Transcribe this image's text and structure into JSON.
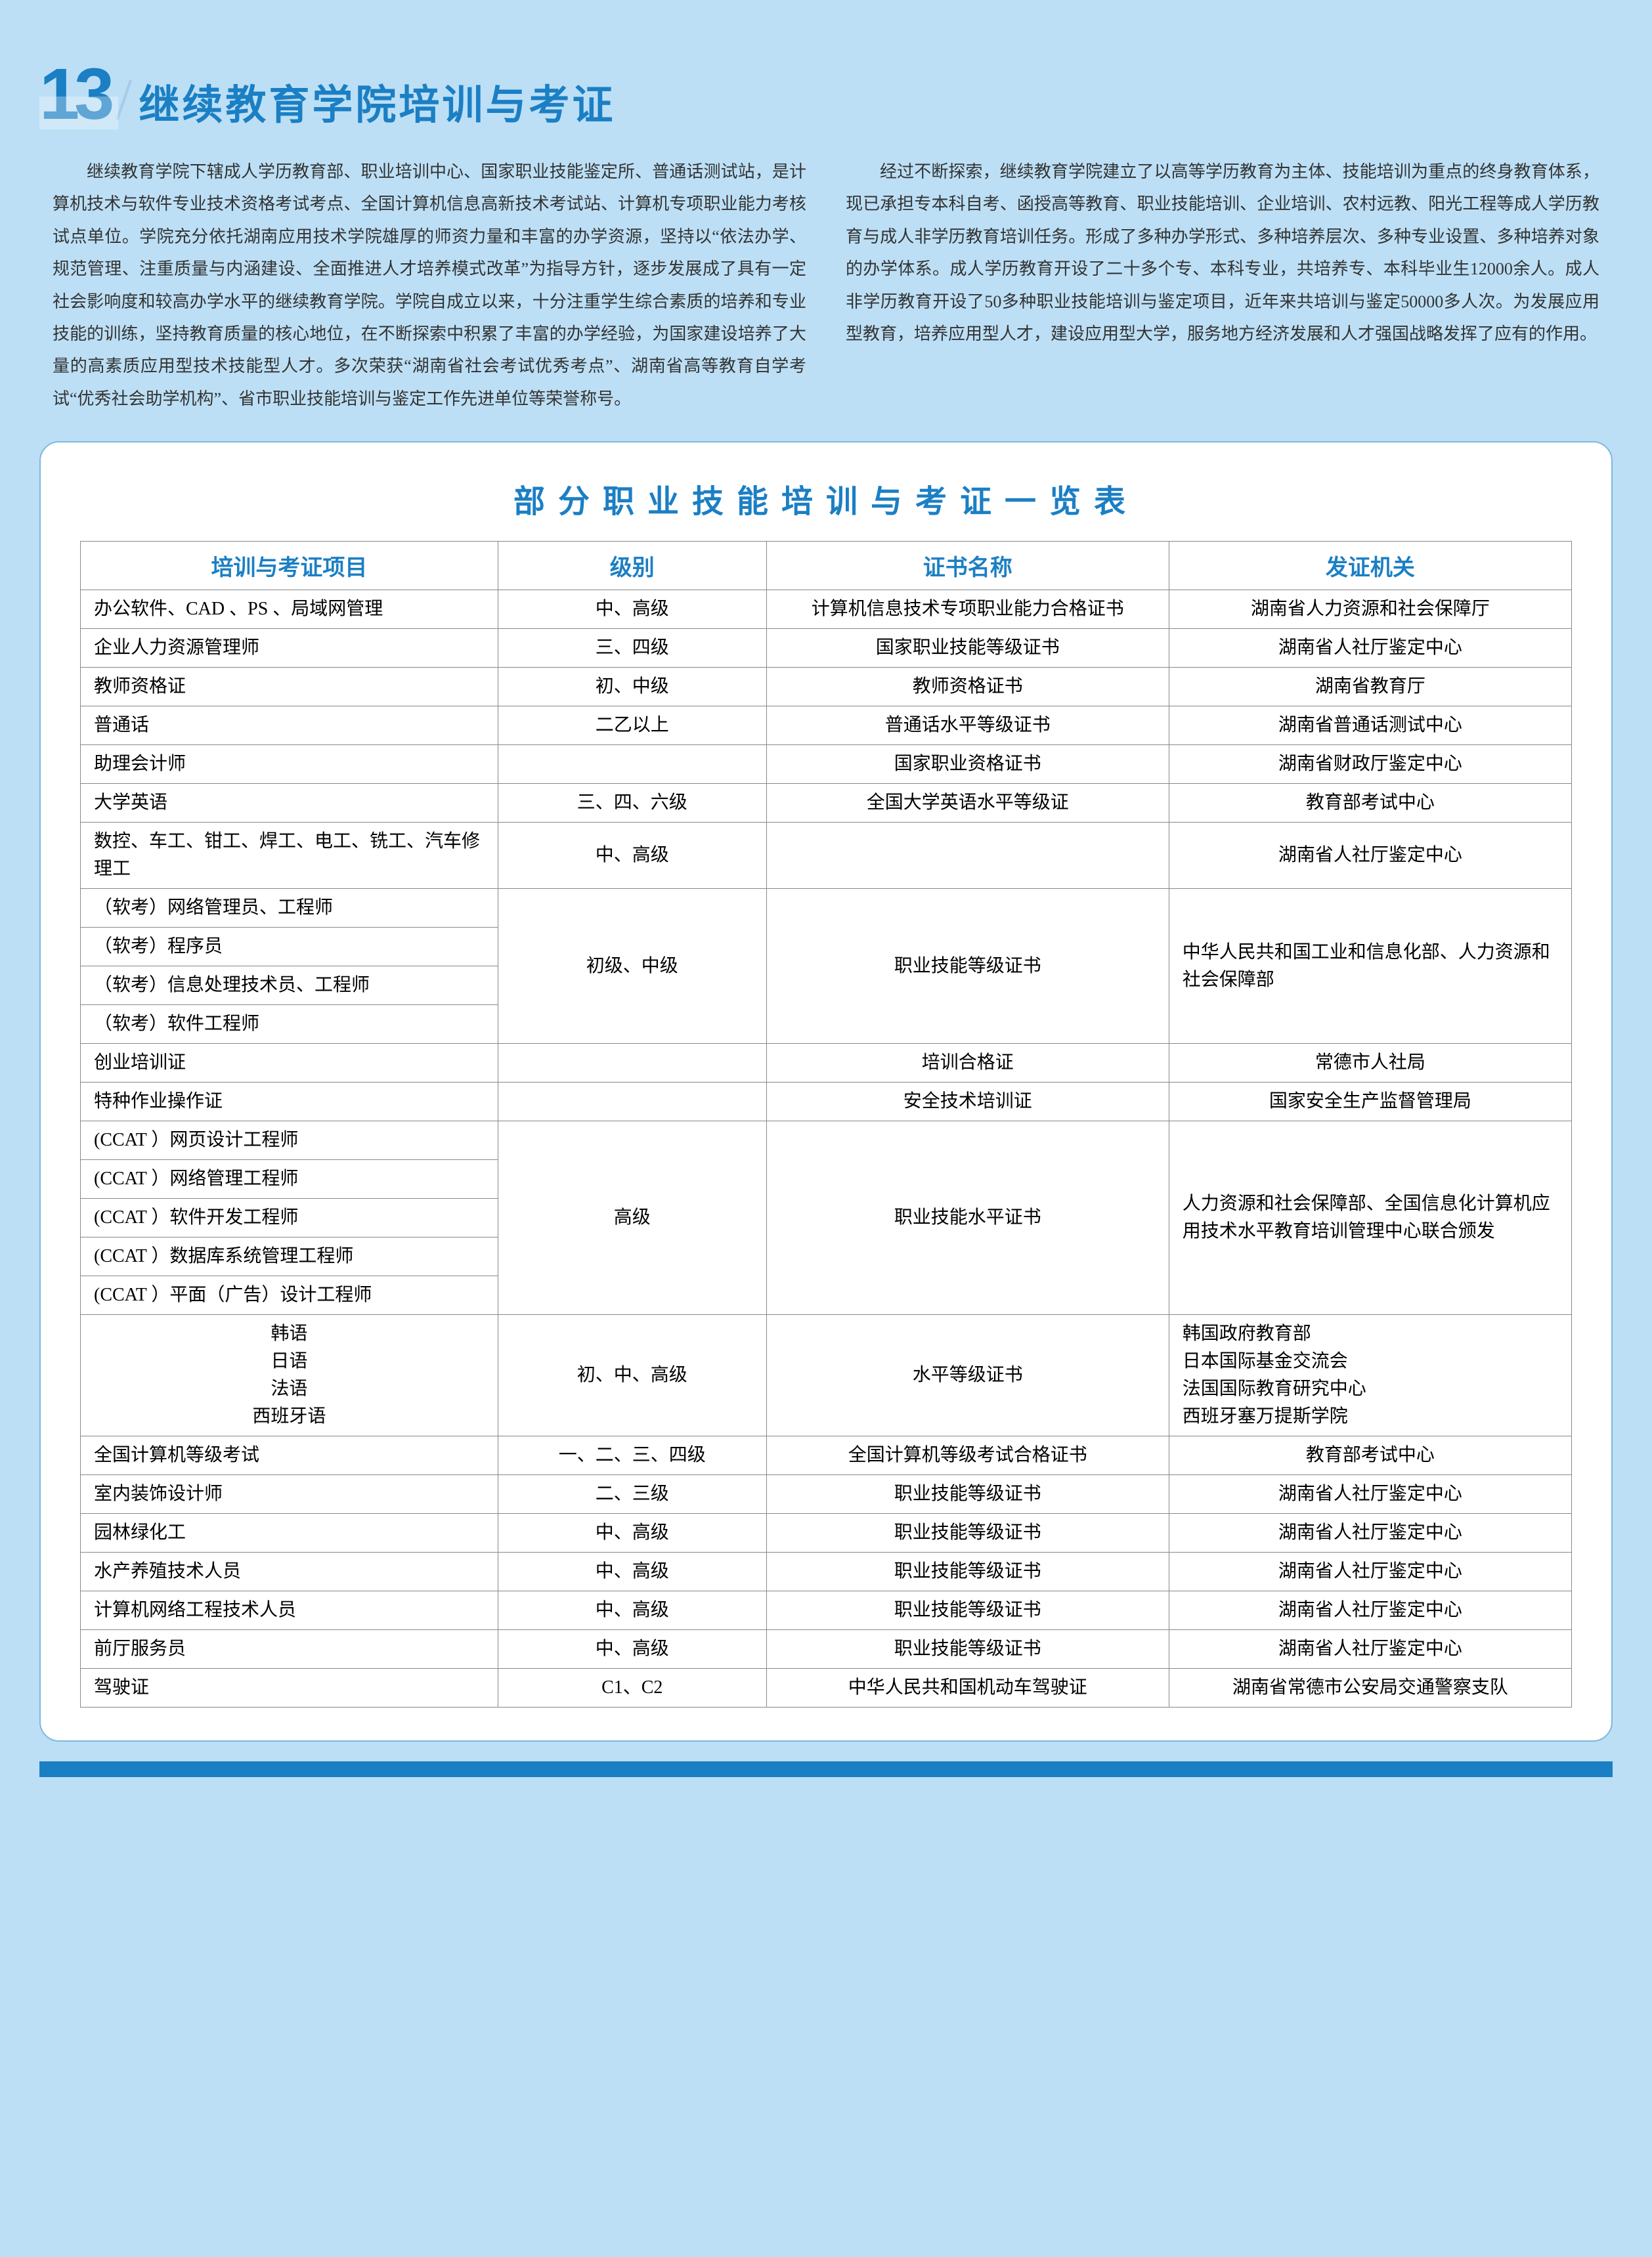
{
  "chapter_number": "13",
  "page_title": "继续教育学院培训与考证",
  "intro_left": "继续教育学院下辖成人学历教育部、职业培训中心、国家职业技能鉴定所、普通话测试站，是计算机技术与软件专业技术资格考试考点、全国计算机信息高新技术考试站、计算机专项职业能力考核试点单位。学院充分依托湖南应用技术学院雄厚的师资力量和丰富的办学资源，坚持以“依法办学、规范管理、注重质量与内涵建设、全面推进人才培养模式改革”为指导方针，逐步发展成了具有一定社会影响度和较高办学水平的继续教育学院。学院自成立以来，十分注重学生综合素质的培养和专业技能的训练，坚持教育质量的核心地位，在不断探索中积累了丰富的办学经验，为国家建设培养了大量的高素质应用型技术技能型人才。多次荣获“湖南省社会考试优秀考点”、湖南省高等教育自学考试“优秀社会助学机构”、省市职业技能培训与鉴定工作先进单位等荣誉称号。",
  "intro_right": "经过不断探索，继续教育学院建立了以高等学历教育为主体、技能培训为重点的终身教育体系，现已承担专本科自考、函授高等教育、职业技能培训、企业培训、农村远教、阳光工程等成人学历教育与成人非学历教育培训任务。形成了多种办学形式、多种培养层次、多种专业设置、多种培养对象的办学体系。成人学历教育开设了二十多个专、本科专业，共培养专、本科毕业生12000余人。成人非学历教育开设了50多种职业技能培训与鉴定项目，近年来共培训与鉴定50000多人次。为发展应用型教育，培养应用型人才，建设应用型大学，服务地方经济发展和人才强国战略发挥了应有的作用。",
  "table_title": "部分职业技能培训与考证一览表",
  "headers": [
    "培训与考证项目",
    "级别",
    "证书名称",
    "发证机关"
  ],
  "rows": [
    {
      "project": "办公软件、CAD 、PS 、局域网管理",
      "level": "中、高级",
      "cert": "计算机信息技术专项职业能力合格证书",
      "issuer": "湖南省人力资源和社会保障厅"
    },
    {
      "project": "企业人力资源管理师",
      "level": "三、四级",
      "cert": "国家职业技能等级证书",
      "issuer": "湖南省人社厅鉴定中心"
    },
    {
      "project": "教师资格证",
      "level": "初、中级",
      "cert": "教师资格证书",
      "issuer": "湖南省教育厅"
    },
    {
      "project": "普通话",
      "level": "二乙以上",
      "cert": "普通话水平等级证书",
      "issuer": "湖南省普通话测试中心"
    },
    {
      "project": "助理会计师",
      "level": "",
      "cert": "国家职业资格证书",
      "issuer": "湖南省财政厅鉴定中心"
    },
    {
      "project": "大学英语",
      "level": "三、四、六级",
      "cert": "全国大学英语水平等级证",
      "issuer": "教育部考试中心"
    },
    {
      "project": "数控、车工、钳工、焊工、电工、铣工、汽车修理工",
      "level": "中、高级",
      "cert": "",
      "issuer": "湖南省人社厅鉴定中心"
    },
    {
      "project": "创业培训证",
      "level": "",
      "cert": "培训合格证",
      "issuer": "常德市人社局"
    },
    {
      "project": "特种作业操作证",
      "level": "",
      "cert": "安全技术培训证",
      "issuer": "国家安全生产监督管理局"
    },
    {
      "project": "全国计算机等级考试",
      "level": "一、二、三、四级",
      "cert": "全国计算机等级考试合格证书",
      "issuer": "教育部考试中心"
    },
    {
      "project": "室内装饰设计师",
      "level": "二、三级",
      "cert": "职业技能等级证书",
      "issuer": "湖南省人社厅鉴定中心"
    },
    {
      "project": "园林绿化工",
      "level": "中、高级",
      "cert": "职业技能等级证书",
      "issuer": "湖南省人社厅鉴定中心"
    },
    {
      "project": "水产养殖技术人员",
      "level": "中、高级",
      "cert": "职业技能等级证书",
      "issuer": "湖南省人社厅鉴定中心"
    },
    {
      "project": "计算机网络工程技术人员",
      "level": "中、高级",
      "cert": "职业技能等级证书",
      "issuer": "湖南省人社厅鉴定中心"
    },
    {
      "project": "前厅服务员",
      "level": "中、高级",
      "cert": "职业技能等级证书",
      "issuer": "湖南省人社厅鉴定中心"
    },
    {
      "project": "驾驶证",
      "level": "C1、C2",
      "cert": "中华人民共和国机动车驾驶证",
      "issuer": "湖南省常德市公安局交通警察支队"
    }
  ],
  "soft_group": {
    "items": [
      "（软考）网络管理员、工程师",
      "（软考）程序员",
      "（软考）信息处理技术员、工程师",
      "（软考）软件工程师"
    ],
    "level": "初级、中级",
    "cert": "职业技能等级证书",
    "issuer": "中华人民共和国工业和信息化部、人力资源和社会保障部"
  },
  "ccat_group": {
    "items": [
      "(CCAT ）网页设计工程师",
      "(CCAT ）网络管理工程师",
      "(CCAT ）软件开发工程师",
      "(CCAT ）数据库系统管理工程师",
      "(CCAT ）平面（广告）设计工程师"
    ],
    "level": "高级",
    "cert": "职业技能水平证书",
    "issuer": "人力资源和社会保障部、全国信息化计算机应用技术水平教育培训管理中心联合颁发"
  },
  "lang_group": {
    "items": [
      "韩语",
      "日语",
      "法语",
      "西班牙语"
    ],
    "level": "初、中、高级",
    "cert": "水平等级证书",
    "issuer_lines": [
      "韩国政府教育部",
      "日本国际基金交流会",
      "法国国际教育研究中心",
      "西班牙塞万提斯学院"
    ]
  }
}
